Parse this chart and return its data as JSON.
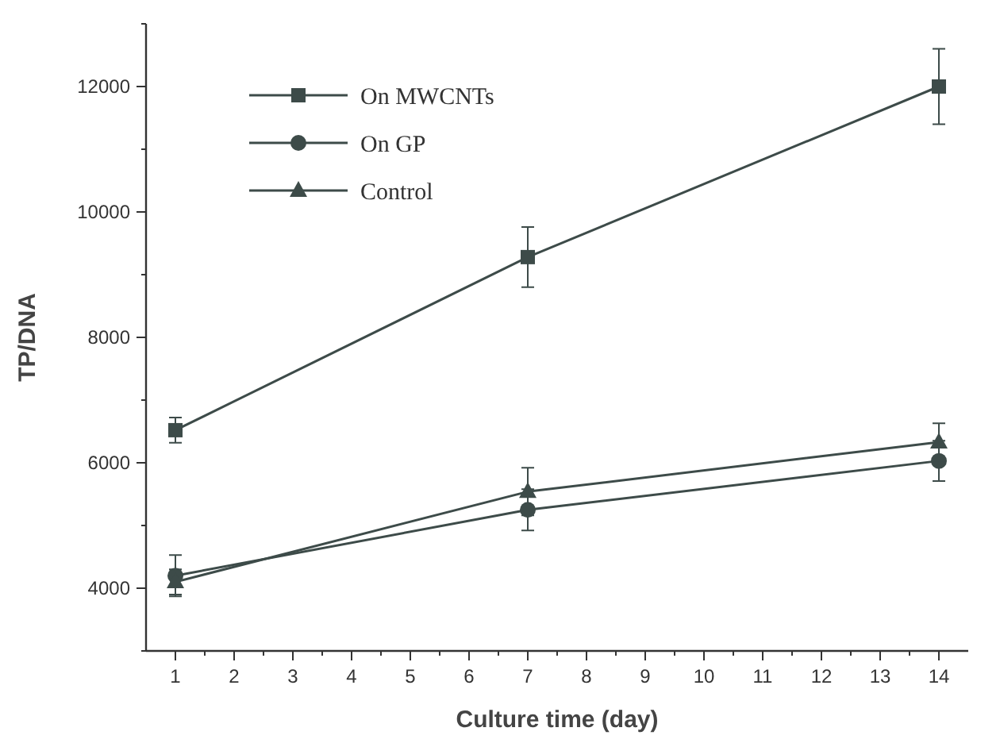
{
  "chart_data": {
    "type": "line",
    "xlabel": "Culture time (day)",
    "ylabel": "TP/DNA",
    "x": [
      1,
      7,
      14
    ],
    "series": [
      {
        "name": "On MWCNTs",
        "color": "#3d4b49",
        "marker": "square",
        "values": [
          6520,
          9280,
          12000
        ],
        "errors": [
          200,
          480,
          600
        ]
      },
      {
        "name": "On GP",
        "color": "#3d4b49",
        "marker": "circle",
        "values": [
          4200,
          5250,
          6030
        ],
        "errors": [
          330,
          330,
          320
        ]
      },
      {
        "name": "Control",
        "color": "#3d4b49",
        "marker": "triangle",
        "values": [
          4100,
          5540,
          6330
        ],
        "errors": [
          200,
          380,
          300
        ]
      }
    ],
    "xlim": [
      0.5,
      14.5
    ],
    "xticks": [
      1,
      2,
      3,
      4,
      5,
      6,
      7,
      8,
      9,
      10,
      11,
      12,
      13,
      14
    ],
    "ylim": [
      3000,
      13000
    ],
    "yticks": [
      {
        "value": 3000,
        "label": null
      },
      4000,
      {
        "value": 5000,
        "label": null
      },
      6000,
      {
        "value": 7000,
        "label": null
      },
      8000,
      {
        "value": 9000,
        "label": null
      },
      10000,
      {
        "value": 11000,
        "label": null
      },
      12000,
      {
        "value": 13000,
        "label": null
      }
    ],
    "grid": false,
    "legend": "top left",
    "line_style": "solid"
  }
}
